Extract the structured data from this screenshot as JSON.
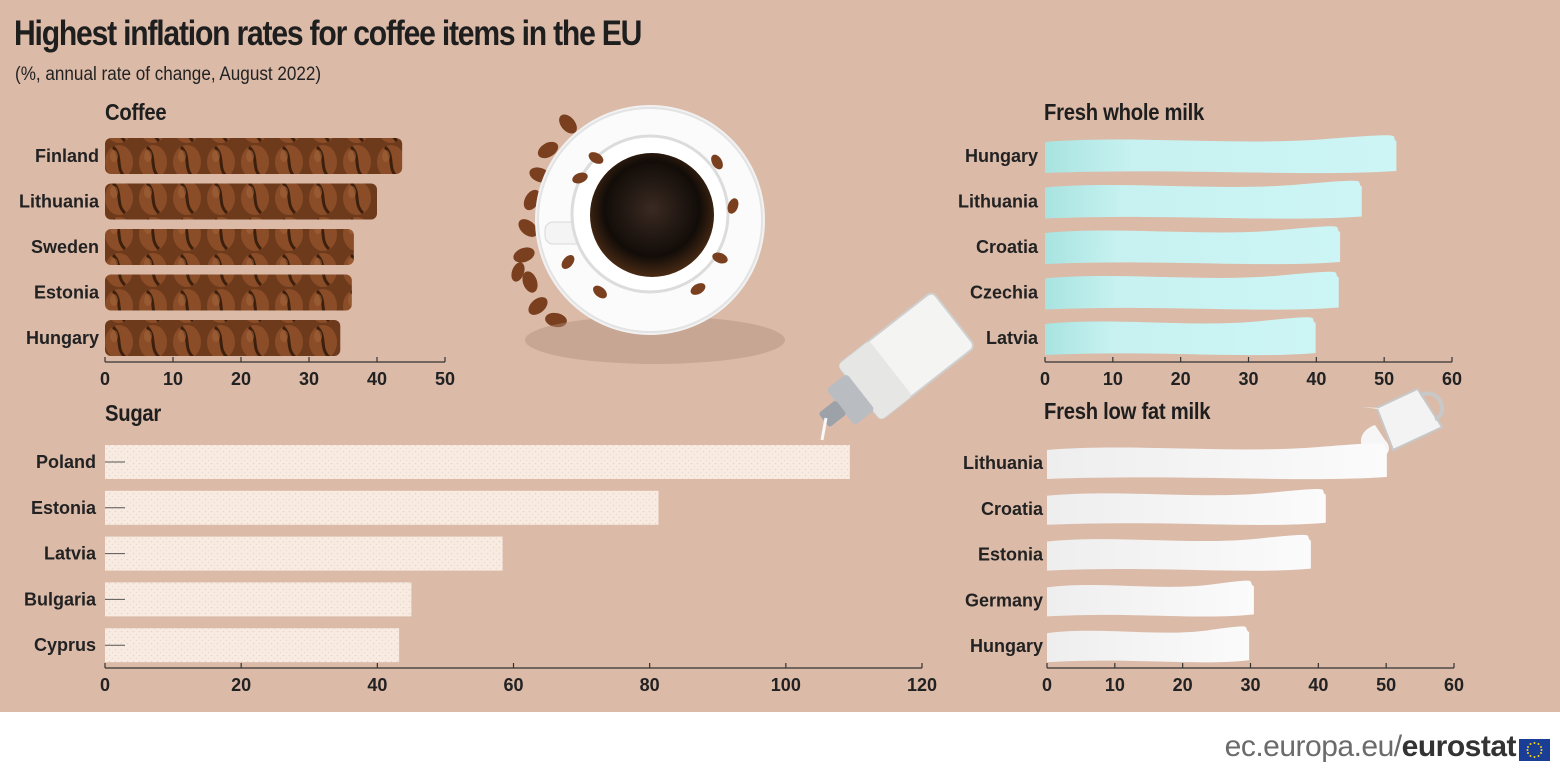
{
  "title": "Highest inflation rates for coffee items in the EU",
  "subtitle": "(%, annual rate of change, August 2022)",
  "footer": {
    "site": "ec.europa.eu/",
    "brand": "eurostat"
  },
  "colors": {
    "background": "#dbbaa8",
    "coffee": "#7a4222",
    "sugar": "#f8ebe1",
    "whole_milk": "#c5f1f1",
    "low_fat_milk": "#f6f6f6",
    "eu_flag_blue": "#1a3d96",
    "eu_flag_stars": "#f7d117"
  },
  "icons": [
    "coffee-cup-icon",
    "coffee-beans-icon",
    "sugar-dispenser-icon",
    "milk-jug-icon",
    "eu-flag-icon"
  ],
  "chart_data": [
    {
      "type": "bar",
      "title": "Coffee",
      "categories": [
        "Finland",
        "Lithuania",
        "Sweden",
        "Estonia",
        "Hungary"
      ],
      "values": [
        43.7,
        40.0,
        36.6,
        36.3,
        34.6
      ],
      "xlim": [
        0,
        50
      ],
      "ticks": [
        0,
        10,
        20,
        30,
        40,
        50
      ],
      "orientation": "horizontal",
      "grid": false
    },
    {
      "type": "bar",
      "title": "Fresh whole milk",
      "categories": [
        "Hungary",
        "Lithuania",
        "Croatia",
        "Czechia",
        "Latvia"
      ],
      "values": [
        51.8,
        46.7,
        43.5,
        43.3,
        39.9
      ],
      "xlim": [
        0,
        60
      ],
      "ticks": [
        0,
        10,
        20,
        30,
        40,
        50,
        60
      ],
      "orientation": "horizontal",
      "grid": false
    },
    {
      "type": "bar",
      "title": "Sugar",
      "categories": [
        "Poland",
        "Estonia",
        "Latvia",
        "Bulgaria",
        "Cyprus"
      ],
      "values": [
        109.4,
        81.3,
        58.4,
        45.0,
        43.2
      ],
      "xlim": [
        0,
        120
      ],
      "ticks": [
        0,
        20,
        40,
        60,
        80,
        100,
        120
      ],
      "orientation": "horizontal",
      "grid": false
    },
    {
      "type": "bar",
      "title": "Fresh low fat milk",
      "categories": [
        "Lithuania",
        "Croatia",
        "Estonia",
        "Germany",
        "Hungary"
      ],
      "values": [
        50.1,
        41.1,
        38.9,
        30.5,
        29.8
      ],
      "xlim": [
        0,
        60
      ],
      "ticks": [
        0,
        10,
        20,
        30,
        40,
        50,
        60
      ],
      "orientation": "horizontal",
      "grid": false
    }
  ]
}
